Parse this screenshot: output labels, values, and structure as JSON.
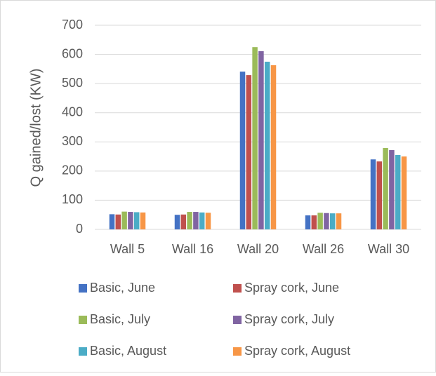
{
  "chart_data": {
    "type": "bar",
    "y_label": "Q gained/lost (KW)",
    "categories": [
      "Wall 5",
      "Wall 16",
      "Wall 20",
      "Wall 26",
      "Wall 30"
    ],
    "series": [
      {
        "name": "Basic, June",
        "color": "#4472c4",
        "values": [
          52,
          50,
          541,
          48,
          240
        ]
      },
      {
        "name": "Spray cork, June",
        "color": "#c0504d",
        "values": [
          51,
          51,
          529,
          48,
          233
        ]
      },
      {
        "name": "Basic, July",
        "color": "#9bbb59",
        "values": [
          61,
          60,
          625,
          57,
          279
        ]
      },
      {
        "name": "Spray cork, July",
        "color": "#8064a2",
        "values": [
          60,
          60,
          611,
          56,
          272
        ]
      },
      {
        "name": "Basic, August",
        "color": "#4bacc6",
        "values": [
          59,
          58,
          575,
          55,
          255
        ]
      },
      {
        "name": "Spray cork, August",
        "color": "#f79646",
        "values": [
          58,
          57,
          563,
          55,
          250
        ]
      }
    ],
    "ylim": [
      0,
      700
    ],
    "yticks": [
      0,
      100,
      200,
      300,
      400,
      500,
      600,
      700
    ],
    "grid": true
  }
}
